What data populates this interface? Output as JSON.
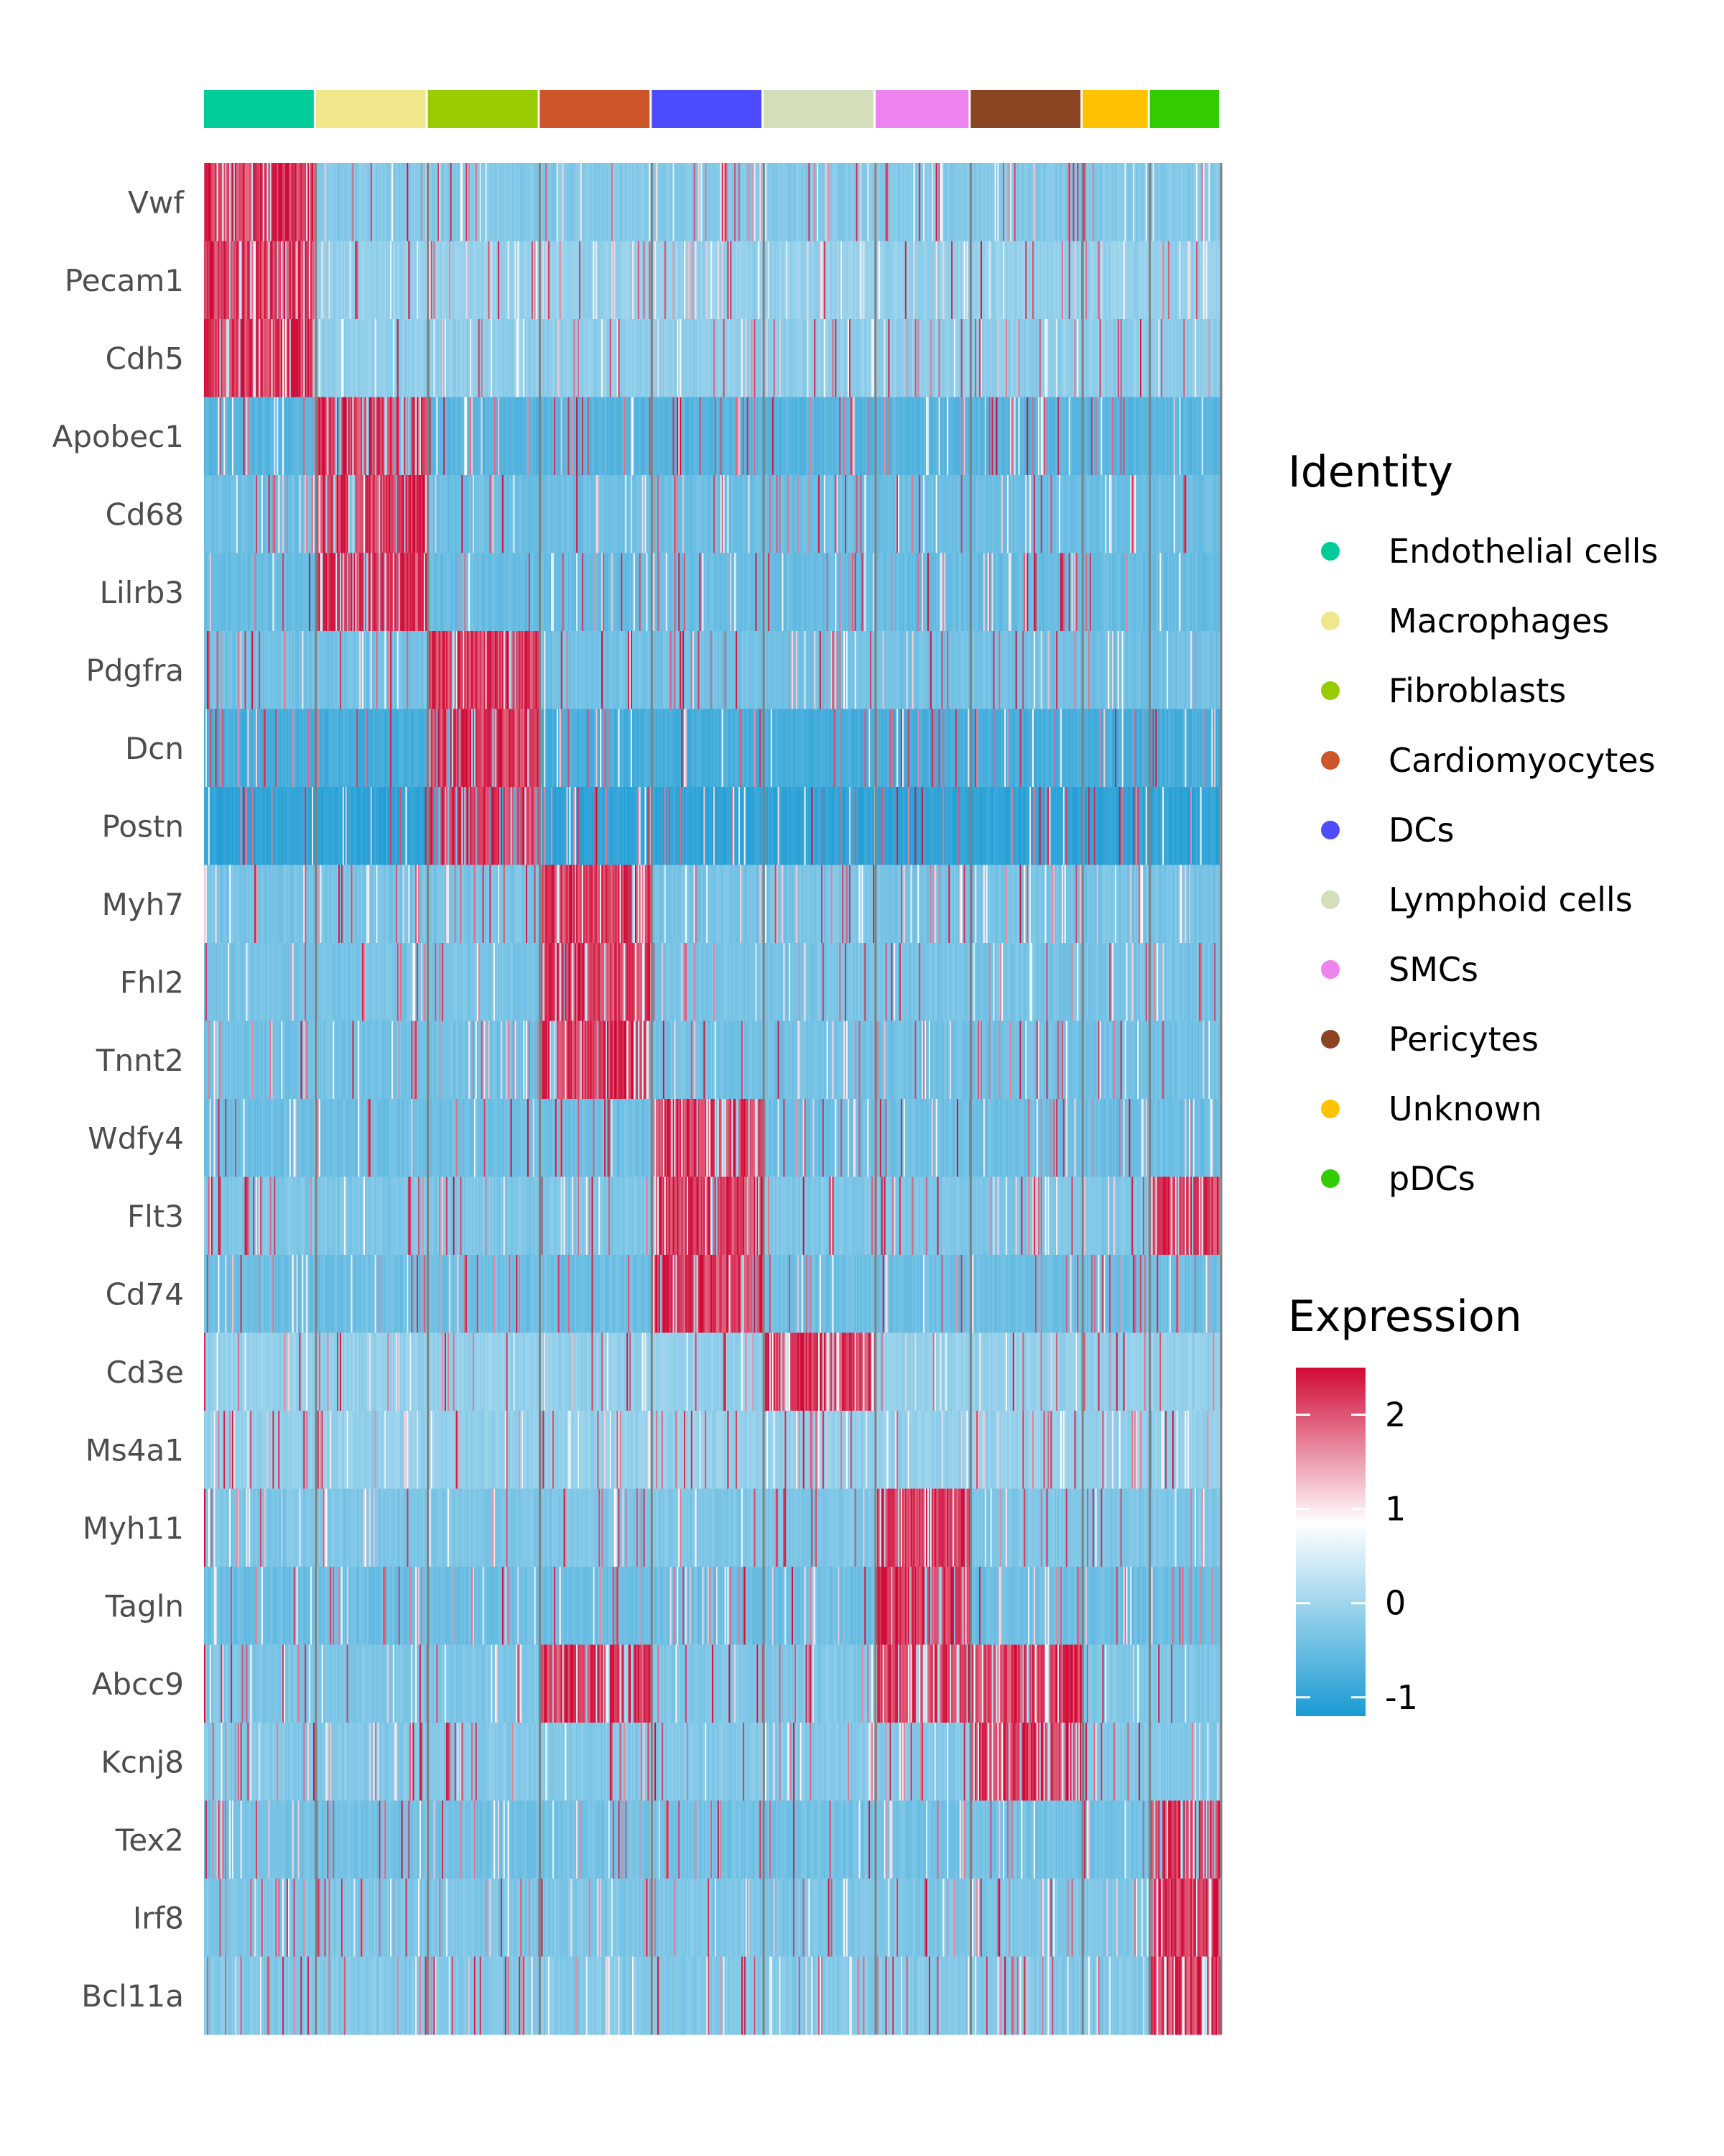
{
  "chart_data": {
    "type": "heatmap",
    "identity_legend_title": "Identity",
    "expression_legend_title": "Expression",
    "colorbar": {
      "ticks": [
        2,
        1,
        0,
        -1
      ],
      "tick_labels": [
        "2",
        "1",
        "0",
        "-1"
      ],
      "range": [
        -1.2,
        2.5
      ],
      "low_color": "#1a9ad3",
      "mid_color": "#ffffff",
      "high_color": "#cf0a36"
    },
    "groups": [
      {
        "name": "Endothelial cells",
        "color": "#00cc99",
        "cells": 80
      },
      {
        "name": "Macrophages",
        "color": "#f0e68c",
        "cells": 80
      },
      {
        "name": "Fibroblasts",
        "color": "#99cc00",
        "cells": 80
      },
      {
        "name": "Cardiomyocytes",
        "color": "#cc5529",
        "cells": 80
      },
      {
        "name": "DCs",
        "color": "#4d4dff",
        "cells": 80
      },
      {
        "name": "Lymphoid cells",
        "color": "#d2dfba",
        "cells": 80
      },
      {
        "name": "SMCs",
        "color": "#ee82ee",
        "cells": 68
      },
      {
        "name": "Pericytes",
        "color": "#8b4522",
        "cells": 80
      },
      {
        "name": "Unknown",
        "color": "#ffc200",
        "cells": 48
      },
      {
        "name": "pDCs",
        "color": "#33cc00",
        "cells": 51
      }
    ],
    "genes": [
      "Vwf",
      "Pecam1",
      "Cdh5",
      "Apobec1",
      "Cd68",
      "Lilrb3",
      "Pdgfra",
      "Dcn",
      "Postn",
      "Myh7",
      "Fhl2",
      "Tnnt2",
      "Wdfy4",
      "Flt3",
      "Cd74",
      "Cd3e",
      "Ms4a1",
      "Myh11",
      "Tagln",
      "Abcc9",
      "Kcnj8",
      "Tex2",
      "Irf8",
      "Bcl11a"
    ],
    "gene_profiles": [
      {
        "base": -0.25,
        "hi": [
          0
        ]
      },
      {
        "base": -0.1,
        "hi": [
          0
        ]
      },
      {
        "base": -0.15,
        "hi": [
          0
        ]
      },
      {
        "base": -0.65,
        "hi": [
          1
        ]
      },
      {
        "base": -0.45,
        "hi": [
          1
        ]
      },
      {
        "base": -0.5,
        "hi": [
          1
        ]
      },
      {
        "base": -0.4,
        "hi": [
          2
        ]
      },
      {
        "base": -0.8,
        "hi": [
          2
        ]
      },
      {
        "base": -1.0,
        "hi": [
          2
        ]
      },
      {
        "base": -0.35,
        "hi": [
          3
        ]
      },
      {
        "base": -0.35,
        "hi": [
          3
        ]
      },
      {
        "base": -0.4,
        "hi": [
          3
        ]
      },
      {
        "base": -0.45,
        "hi": [
          4
        ]
      },
      {
        "base": -0.3,
        "hi": [
          4,
          9
        ]
      },
      {
        "base": -0.45,
        "hi": [
          4
        ]
      },
      {
        "base": -0.1,
        "hi": [
          5
        ]
      },
      {
        "base": -0.1,
        "hi": []
      },
      {
        "base": -0.3,
        "hi": [
          6
        ]
      },
      {
        "base": -0.45,
        "hi": [
          6
        ]
      },
      {
        "base": -0.3,
        "hi": [
          3,
          6,
          7
        ]
      },
      {
        "base": -0.25,
        "hi": [
          7
        ]
      },
      {
        "base": -0.4,
        "hi": [
          9
        ]
      },
      {
        "base": -0.3,
        "hi": [
          9
        ]
      },
      {
        "base": -0.25,
        "hi": [
          9
        ]
      }
    ]
  }
}
